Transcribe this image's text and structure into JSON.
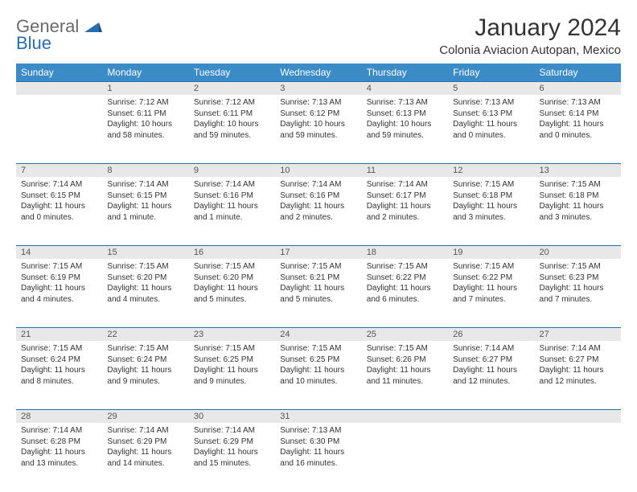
{
  "logo": {
    "line1": "General",
    "line2": "Blue"
  },
  "title": "January 2024",
  "location": "Colonia Aviacion Autopan, Mexico",
  "dayHeaders": [
    "Sunday",
    "Monday",
    "Tuesday",
    "Wednesday",
    "Thursday",
    "Friday",
    "Saturday"
  ],
  "colors": {
    "headerBg": "#3b8bc7",
    "headerText": "#ffffff",
    "dayNumBg": "#e8e8e8",
    "borderTop": "#2a6db0",
    "bodyText": "#333333",
    "logoGray": "#6a6a6a",
    "logoBlue": "#2a6db0"
  },
  "weeks": [
    [
      null,
      {
        "n": "1",
        "sr": "7:12 AM",
        "ss": "6:11 PM",
        "dl": "10 hours and 58 minutes."
      },
      {
        "n": "2",
        "sr": "7:12 AM",
        "ss": "6:11 PM",
        "dl": "10 hours and 59 minutes."
      },
      {
        "n": "3",
        "sr": "7:13 AM",
        "ss": "6:12 PM",
        "dl": "10 hours and 59 minutes."
      },
      {
        "n": "4",
        "sr": "7:13 AM",
        "ss": "6:13 PM",
        "dl": "10 hours and 59 minutes."
      },
      {
        "n": "5",
        "sr": "7:13 AM",
        "ss": "6:13 PM",
        "dl": "11 hours and 0 minutes."
      },
      {
        "n": "6",
        "sr": "7:13 AM",
        "ss": "6:14 PM",
        "dl": "11 hours and 0 minutes."
      }
    ],
    [
      {
        "n": "7",
        "sr": "7:14 AM",
        "ss": "6:15 PM",
        "dl": "11 hours and 0 minutes."
      },
      {
        "n": "8",
        "sr": "7:14 AM",
        "ss": "6:15 PM",
        "dl": "11 hours and 1 minute."
      },
      {
        "n": "9",
        "sr": "7:14 AM",
        "ss": "6:16 PM",
        "dl": "11 hours and 1 minute."
      },
      {
        "n": "10",
        "sr": "7:14 AM",
        "ss": "6:16 PM",
        "dl": "11 hours and 2 minutes."
      },
      {
        "n": "11",
        "sr": "7:14 AM",
        "ss": "6:17 PM",
        "dl": "11 hours and 2 minutes."
      },
      {
        "n": "12",
        "sr": "7:15 AM",
        "ss": "6:18 PM",
        "dl": "11 hours and 3 minutes."
      },
      {
        "n": "13",
        "sr": "7:15 AM",
        "ss": "6:18 PM",
        "dl": "11 hours and 3 minutes."
      }
    ],
    [
      {
        "n": "14",
        "sr": "7:15 AM",
        "ss": "6:19 PM",
        "dl": "11 hours and 4 minutes."
      },
      {
        "n": "15",
        "sr": "7:15 AM",
        "ss": "6:20 PM",
        "dl": "11 hours and 4 minutes."
      },
      {
        "n": "16",
        "sr": "7:15 AM",
        "ss": "6:20 PM",
        "dl": "11 hours and 5 minutes."
      },
      {
        "n": "17",
        "sr": "7:15 AM",
        "ss": "6:21 PM",
        "dl": "11 hours and 5 minutes."
      },
      {
        "n": "18",
        "sr": "7:15 AM",
        "ss": "6:22 PM",
        "dl": "11 hours and 6 minutes."
      },
      {
        "n": "19",
        "sr": "7:15 AM",
        "ss": "6:22 PM",
        "dl": "11 hours and 7 minutes."
      },
      {
        "n": "20",
        "sr": "7:15 AM",
        "ss": "6:23 PM",
        "dl": "11 hours and 7 minutes."
      }
    ],
    [
      {
        "n": "21",
        "sr": "7:15 AM",
        "ss": "6:24 PM",
        "dl": "11 hours and 8 minutes."
      },
      {
        "n": "22",
        "sr": "7:15 AM",
        "ss": "6:24 PM",
        "dl": "11 hours and 9 minutes."
      },
      {
        "n": "23",
        "sr": "7:15 AM",
        "ss": "6:25 PM",
        "dl": "11 hours and 9 minutes."
      },
      {
        "n": "24",
        "sr": "7:15 AM",
        "ss": "6:25 PM",
        "dl": "11 hours and 10 minutes."
      },
      {
        "n": "25",
        "sr": "7:15 AM",
        "ss": "6:26 PM",
        "dl": "11 hours and 11 minutes."
      },
      {
        "n": "26",
        "sr": "7:14 AM",
        "ss": "6:27 PM",
        "dl": "11 hours and 12 minutes."
      },
      {
        "n": "27",
        "sr": "7:14 AM",
        "ss": "6:27 PM",
        "dl": "11 hours and 12 minutes."
      }
    ],
    [
      {
        "n": "28",
        "sr": "7:14 AM",
        "ss": "6:28 PM",
        "dl": "11 hours and 13 minutes."
      },
      {
        "n": "29",
        "sr": "7:14 AM",
        "ss": "6:29 PM",
        "dl": "11 hours and 14 minutes."
      },
      {
        "n": "30",
        "sr": "7:14 AM",
        "ss": "6:29 PM",
        "dl": "11 hours and 15 minutes."
      },
      {
        "n": "31",
        "sr": "7:13 AM",
        "ss": "6:30 PM",
        "dl": "11 hours and 16 minutes."
      },
      null,
      null,
      null
    ]
  ],
  "labels": {
    "sunrise": "Sunrise:",
    "sunset": "Sunset:",
    "daylight": "Daylight:"
  }
}
